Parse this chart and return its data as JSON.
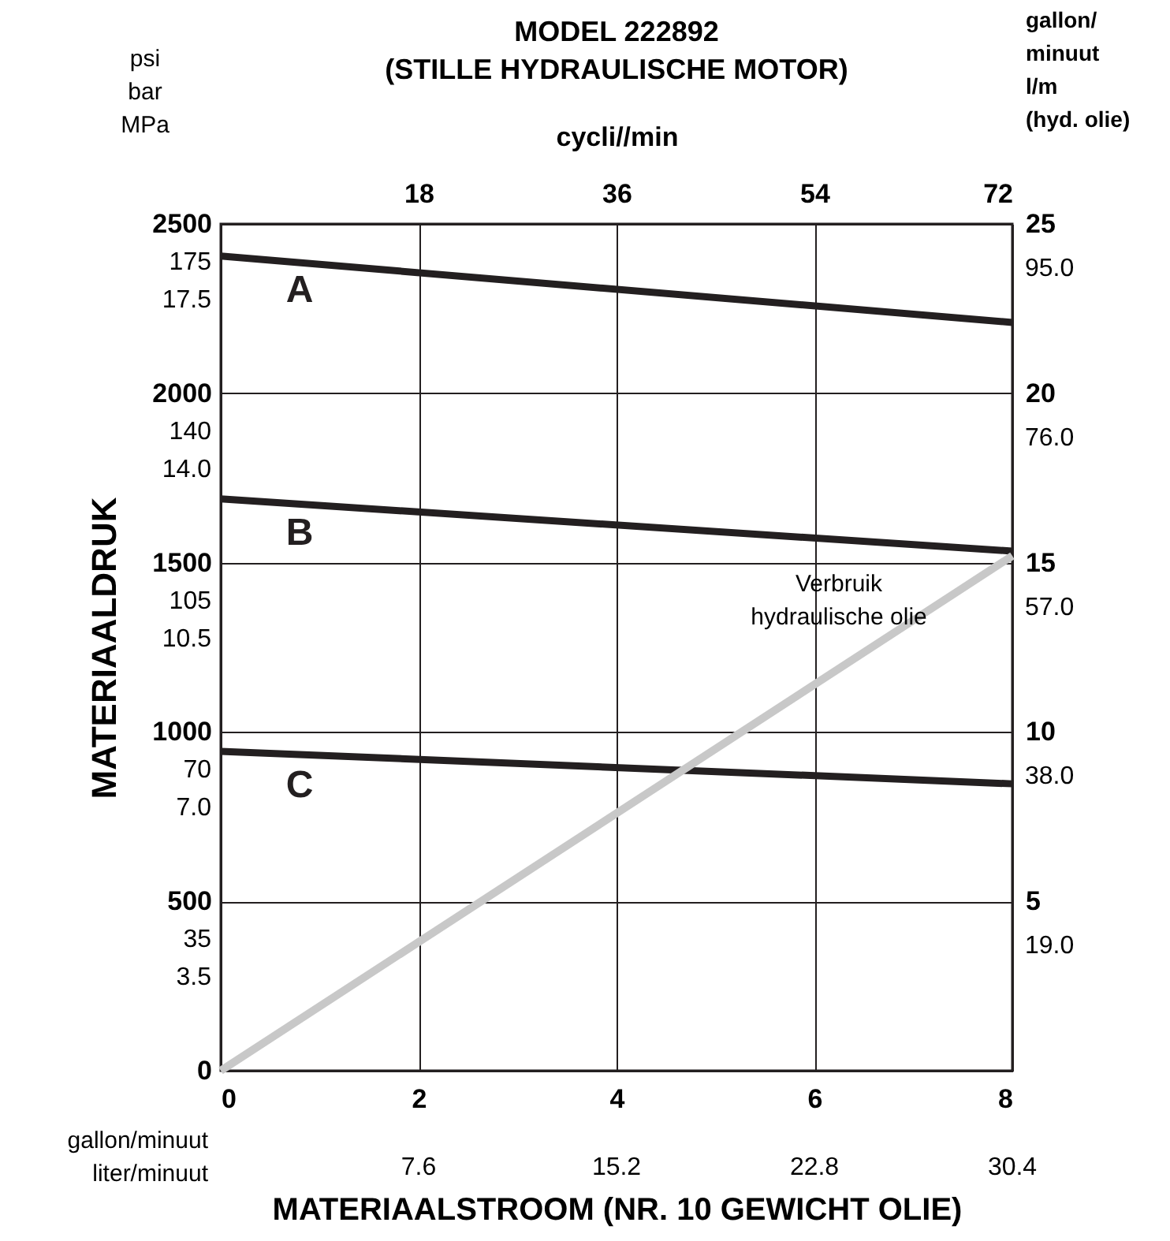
{
  "chart_data": {
    "type": "line",
    "title": "MODEL 222892\n(STILLE HYDRAULISCHE MOTOR)",
    "xlabel": "MATERIAALSTROOM (NR. 10 GEWICHT OLIE)",
    "ylabel": "MATERIAALDRUK",
    "y2label": "gallon/\nminuut\nl/m\n(hyd. olie)",
    "x2label": "cycli//min",
    "x": [
      0,
      8
    ],
    "series": [
      {
        "name": "A",
        "color": "#231f20",
        "values": [
          2405,
          2209
        ]
      },
      {
        "name": "B",
        "color": "#231f20",
        "values": [
          1688,
          1534
        ]
      },
      {
        "name": "C",
        "color": "#231f20",
        "values": [
          943,
          847
        ]
      },
      {
        "color": "#c8c8c8",
        "values": [
          0,
          15.2
        ],
        "axis": "y2"
      }
    ],
    "xlim": [
      0,
      8
    ],
    "xticks": [
      0,
      2,
      4,
      6,
      8
    ],
    "x2lim": [
      0,
      72
    ],
    "x2ticks": [
      18,
      36,
      54,
      72
    ],
    "ylim": [
      0,
      2500
    ],
    "yticks": [
      0,
      500,
      1000,
      1500,
      2000,
      2500
    ],
    "y2lim": [
      0,
      25
    ],
    "y2ticks": [
      5,
      10,
      15,
      20,
      25
    ],
    "annotations": [
      "psi\nbar\nMPa",
      "gallon/minuut\nliter/minuut",
      "Verbruik\nhydraulische olie",
      "175\n140\n105\n70\n35",
      "17.5\n14.0\n10.5\n7.0\n3.5",
      "95.0\n76.0\n57.0\n38.0\n19.0",
      "7.6",
      "15.2",
      "22.8",
      "30.4"
    ],
    "grid": true,
    "legend": false,
    "marker": "none",
    "line_style": "solid"
  }
}
